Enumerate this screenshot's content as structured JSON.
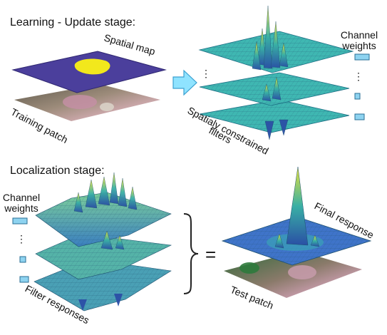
{
  "headings": {
    "learning": "Learning - Update stage:",
    "localization": "Localization stage:"
  },
  "labels": {
    "spatial_map": "Spatial map",
    "training_patch": "Training patch",
    "channel_weights_line1": "Channel",
    "channel_weights_line2": "weights",
    "filters_line1": "Spatialy constrained",
    "filters_line2": "filters",
    "filter_responses": "Filter responses",
    "final_response": "Final response",
    "test_patch": "Test patch",
    "ellipsis": "⋮",
    "equals": "="
  },
  "colors": {
    "spatial_map_bg": "#4b3f9c",
    "spatial_map_blob": "#f2e81c",
    "filter_plane": "#3fb7b2",
    "response_surface": "#4aa0b5",
    "final_surface": "#3f74c9",
    "peak": "#e2e23a",
    "weight_box": "#8ed3f0",
    "weight_box_stroke": "#2a6f96",
    "arrow_fill": "#8fe3ff",
    "arrow_stroke": "#3aa0d0"
  },
  "icons": [
    "right-arrow-icon",
    "curly-brace-icon"
  ]
}
